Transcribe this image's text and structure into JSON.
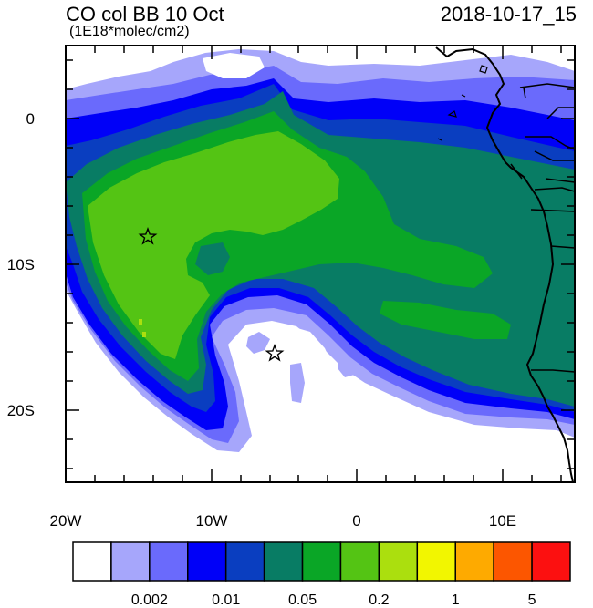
{
  "header": {
    "title": "CO col BB 10 Oct",
    "units": "(1E18*molec/cm2)",
    "datetime": "2018-10-17_15"
  },
  "map": {
    "region": "Southeast Atlantic / West-Central Africa",
    "lon_range": [
      -20,
      15
    ],
    "lat_range": [
      -25,
      5
    ],
    "x_ticks": [
      "20W",
      "10W",
      "0",
      "10E"
    ],
    "y_ticks": [
      "0",
      "10S",
      "20S"
    ],
    "markers": [
      {
        "name": "star-west",
        "lon": -14.4,
        "lat": -8.0
      },
      {
        "name": "star-south",
        "lon": -5.7,
        "lat": -16.0
      }
    ]
  },
  "colorbar": {
    "colors": [
      "#ffffff",
      "#a6a6fb",
      "#6a6afc",
      "#0000f8",
      "#0a3ec0",
      "#087c64",
      "#0aa626",
      "#54c414",
      "#abdf0e",
      "#f2f600",
      "#feaa00",
      "#fc5600",
      "#fc1010"
    ],
    "labels": [
      {
        "text": "0.002",
        "after_box": 2
      },
      {
        "text": "0.01",
        "after_box": 4
      },
      {
        "text": "0.05",
        "after_box": 6
      },
      {
        "text": "0.2",
        "after_box": 8
      },
      {
        "text": "1",
        "after_box": 10
      },
      {
        "text": "5",
        "after_box": 12
      }
    ]
  }
}
